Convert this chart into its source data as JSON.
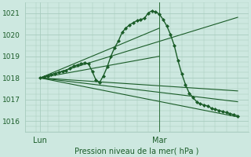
{
  "bg_color": "#cde8e0",
  "grid_color": "#a8ccbf",
  "line_color": "#1a5c28",
  "marker_color": "#1a5c28",
  "vline_color": "#2d6e3a",
  "xlabel": "Pression niveau de la mer( hPa )",
  "ylim": [
    1015.5,
    1021.5
  ],
  "xlim": [
    0,
    60
  ],
  "yticks": [
    1016,
    1017,
    1018,
    1019,
    1020,
    1021
  ],
  "xtick_positions": [
    4,
    36
  ],
  "xtick_labels": [
    "Lun",
    "Mar"
  ],
  "vline_x": 36,
  "main_line": {
    "x": [
      4,
      5,
      6,
      7,
      8,
      9,
      10,
      11,
      12,
      13,
      14,
      15,
      16,
      17,
      18,
      19,
      20,
      21,
      22,
      23,
      24,
      25,
      26,
      27,
      28,
      29,
      30,
      31,
      32,
      33,
      34,
      35,
      36,
      37,
      38,
      39,
      40,
      41,
      42,
      43,
      44,
      45,
      46,
      47,
      48,
      49,
      50,
      51,
      52,
      53,
      54,
      55,
      56,
      57
    ],
    "y": [
      1018.0,
      1018.05,
      1018.1,
      1018.15,
      1018.2,
      1018.25,
      1018.3,
      1018.35,
      1018.45,
      1018.55,
      1018.6,
      1018.65,
      1018.7,
      1018.65,
      1018.3,
      1017.9,
      1017.8,
      1018.1,
      1018.5,
      1019.0,
      1019.4,
      1019.7,
      1020.1,
      1020.3,
      1020.45,
      1020.55,
      1020.65,
      1020.7,
      1020.75,
      1021.0,
      1021.1,
      1021.05,
      1020.95,
      1020.7,
      1020.4,
      1020.0,
      1019.5,
      1018.8,
      1018.2,
      1017.7,
      1017.3,
      1017.1,
      1016.9,
      1016.8,
      1016.75,
      1016.7,
      1016.6,
      1016.55,
      1016.5,
      1016.45,
      1016.4,
      1016.35,
      1016.3,
      1016.25
    ],
    "marker": "D",
    "marker_size": 2.0,
    "linewidth": 1.0
  },
  "straight_lines": [
    {
      "x": [
        4,
        57
      ],
      "y": [
        1018.0,
        1016.2
      ]
    },
    {
      "x": [
        4,
        57
      ],
      "y": [
        1018.0,
        1016.9
      ]
    },
    {
      "x": [
        4,
        57
      ],
      "y": [
        1018.0,
        1017.4
      ]
    },
    {
      "x": [
        4,
        36
      ],
      "y": [
        1018.0,
        1019.0
      ]
    },
    {
      "x": [
        4,
        36
      ],
      "y": [
        1018.0,
        1020.3
      ]
    },
    {
      "x": [
        4,
        57
      ],
      "y": [
        1018.0,
        1020.8
      ]
    }
  ]
}
